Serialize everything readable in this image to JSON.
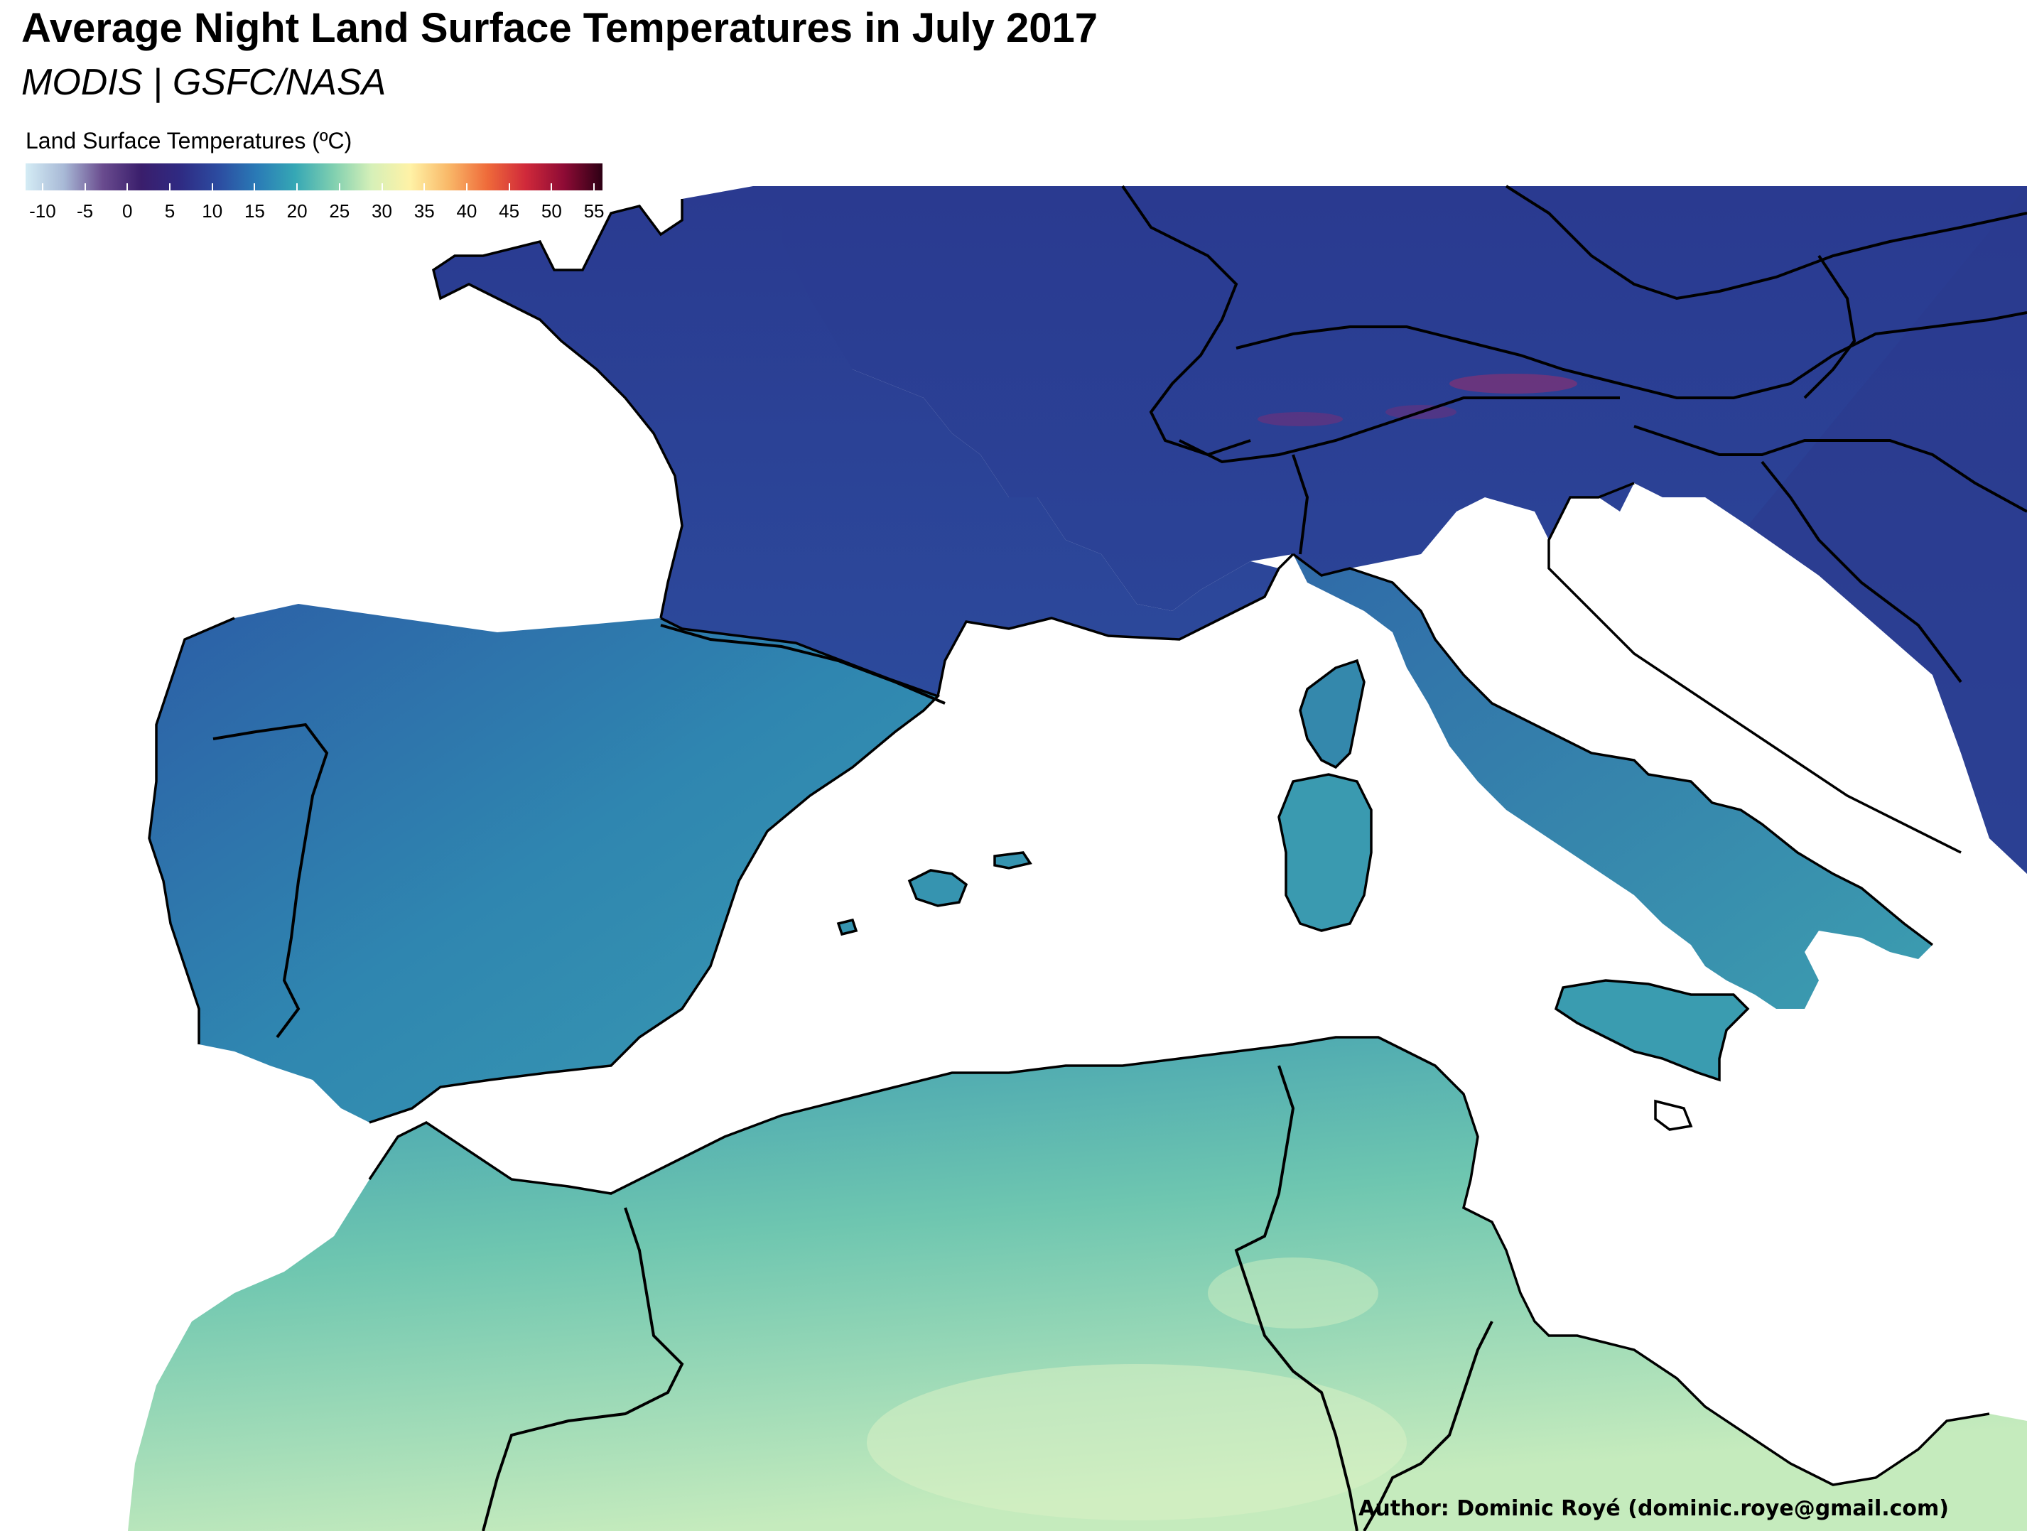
{
  "title": "Average Night Land Surface Temperatures in July 2017",
  "subtitle": "MODIS | GSFC/NASA",
  "legend": {
    "title": "Land Surface Temperatures (ºC)",
    "ticks": [
      "-10",
      "-5",
      "0",
      "5",
      "10",
      "15",
      "20",
      "25",
      "30",
      "35",
      "40",
      "45",
      "50",
      "55"
    ],
    "min": -12,
    "max": 56,
    "colors": [
      "#d4ecf5",
      "#a8b9d6",
      "#6a4c8f",
      "#3a1e6c",
      "#2f2a82",
      "#2c4ba0",
      "#2a7ab6",
      "#35a7b5",
      "#7fcfb0",
      "#d6f0b8",
      "#fff2a6",
      "#f9b868",
      "#ef6b3a",
      "#d0293a",
      "#8e0b35",
      "#2d0014"
    ]
  },
  "map": {
    "ocean_color": "#ffffff",
    "border_color": "#000000",
    "regions": [
      {
        "name": "france",
        "color": "#2b3d94"
      },
      {
        "name": "central-europe",
        "color": "#2c3388"
      },
      {
        "name": "iberia",
        "color": "#2f7fae"
      },
      {
        "name": "italy",
        "color": "#3590ad"
      },
      {
        "name": "north-africa",
        "color": "#4fb0b0"
      },
      {
        "name": "sahara",
        "color": "#a8dcb2"
      }
    ]
  },
  "author": "Author: Dominic Royé (dominic.roye@gmail.com)"
}
